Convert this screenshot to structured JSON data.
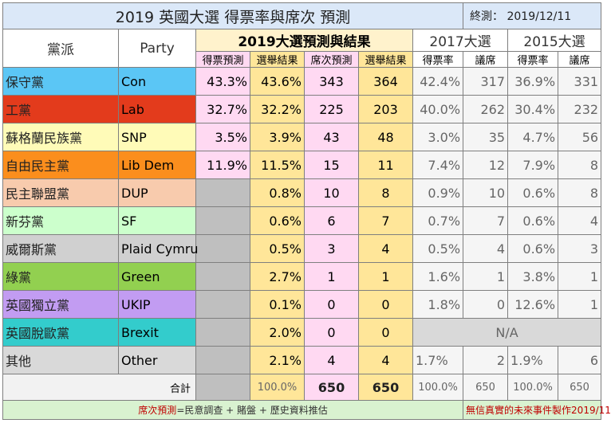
{
  "title": "2019  英國大選  得票率與席次  預測",
  "date_label": "終測：  2019/12/11",
  "headers": {
    "party_zh": "黨派",
    "party_en": "Party",
    "group_2019": "2019大選預測與結果",
    "group_2017": "2017大選",
    "group_2015": "2015大選",
    "vote_pred": "得票預測",
    "vote_result": "選舉結果",
    "seat_pred": "席次預測",
    "seat_result": "選舉結果",
    "vote_rate": "得票率",
    "seats": "議席"
  },
  "rows": [
    {
      "zh": "保守黨",
      "en": "Con",
      "color": "#5bc6f5",
      "vp": "43.3%",
      "vr": "43.6%",
      "sp": "343",
      "sr": "364",
      "v17": "42.4%",
      "s17": "317",
      "v15": "36.9%",
      "s15": "331"
    },
    {
      "zh": "工黨",
      "en": "Lab",
      "color": "#e33b1c",
      "vp": "32.7%",
      "vr": "32.2%",
      "sp": "225",
      "sr": "203",
      "v17": "40.0%",
      "s17": "262",
      "v15": "30.4%",
      "s15": "232"
    },
    {
      "zh": "蘇格蘭民族黨",
      "en": "SNP",
      "color": "#fffbb8",
      "vp": "3.5%",
      "vr": "3.9%",
      "sp": "43",
      "sr": "48",
      "v17": "3.0%",
      "s17": "35",
      "v15": "4.7%",
      "s15": "56"
    },
    {
      "zh": "自由民主黨",
      "en": "Lib Dem",
      "color": "#fb8e1d",
      "vp": "11.9%",
      "vr": "11.5%",
      "sp": "15",
      "sr": "11",
      "v17": "7.4%",
      "s17": "12",
      "v15": "7.9%",
      "s15": "8"
    },
    {
      "zh": "民主聯盟黨",
      "en": "DUP",
      "color": "#f8cbad",
      "vp": "",
      "vr": "0.8%",
      "sp": "10",
      "sr": "8",
      "v17": "0.9%",
      "s17": "10",
      "v15": "0.6%",
      "s15": "8"
    },
    {
      "zh": "新芬黨",
      "en": "SF",
      "color": "#ccffcc",
      "vp": "",
      "vr": "0.6%",
      "sp": "6",
      "sr": "7",
      "v17": "0.7%",
      "s17": "7",
      "v15": "0.6%",
      "s15": "4"
    },
    {
      "zh": "威爾斯黨",
      "en": "Plaid Cymru",
      "color": "#d0d0d0",
      "vp": "",
      "vr": "0.5%",
      "sp": "3",
      "sr": "4",
      "v17": "0.5%",
      "s17": "4",
      "v15": "0.6%",
      "s15": "3"
    },
    {
      "zh": "綠黨",
      "en": "Green",
      "color": "#92d050",
      "vp": "",
      "vr": "2.7%",
      "sp": "1",
      "sr": "1",
      "v17": "1.6%",
      "s17": "1",
      "v15": "3.8%",
      "s15": "1"
    },
    {
      "zh": "英國獨立黨",
      "en": "UKIP",
      "color": "#c29cf2",
      "vp": "",
      "vr": "0.1%",
      "sp": "0",
      "sr": "0",
      "v17": "1.8%",
      "s17": "0",
      "v15": "12.6%",
      "s15": "1"
    },
    {
      "zh": "英國脫歐黨",
      "en": "Brexit",
      "color": "#33cccc",
      "vp": "",
      "vr": "2.0%",
      "sp": "0",
      "sr": "0",
      "na": "N/A"
    },
    {
      "zh": "其他",
      "en": "Other",
      "color": "#d9d9d9",
      "vp": "",
      "vr": "2.1%",
      "sp": "4",
      "sr": "4",
      "v17": "1.7%",
      "s17": "2",
      "v15": "1.9%",
      "s15": "6"
    }
  ],
  "total": {
    "label": "合計",
    "vr": "100.0%",
    "sp": "650",
    "sr": "650",
    "v17": "100.0%",
    "s17": "650",
    "v15": "100.0%",
    "s15": "650"
  },
  "footer": {
    "seat_pred": "席次預測",
    "formula": "=民意調查 + 賭盤 + 歷史資料推估",
    "credit": "無信真實的未來事件製作2019/11"
  }
}
